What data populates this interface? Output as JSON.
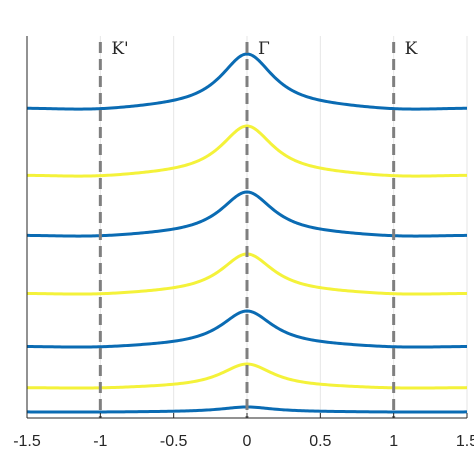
{
  "chart_data": {
    "type": "line",
    "xlim": [
      -1.5,
      1.5
    ],
    "x_ticks": [
      "-1.5",
      "-1",
      "-0.5",
      "0",
      "0.5",
      "1",
      "1.5"
    ],
    "x_tick_values": [
      -1.5,
      -1,
      -0.5,
      0,
      0.5,
      1,
      1.5
    ],
    "grid": true,
    "y_axis_labels": false,
    "colors": {
      "blue": "#0a6bb3",
      "yellow": "#f4f23a",
      "marker": "#7f7f7f",
      "axis": "#262626",
      "grid": "#e6e6e6"
    },
    "vertical_markers": [
      {
        "x": -1,
        "label": "K'"
      },
      {
        "x": 0,
        "label": "Γ"
      },
      {
        "x": 1,
        "label": "K"
      }
    ],
    "series": [
      {
        "color": "blue",
        "baseline": 109,
        "peak": 54
      },
      {
        "color": "yellow",
        "baseline": 176,
        "peak": 126
      },
      {
        "color": "blue",
        "baseline": 236,
        "peak": 192
      },
      {
        "color": "yellow",
        "baseline": 294,
        "peak": 254
      },
      {
        "color": "blue",
        "baseline": 347,
        "peak": 311
      },
      {
        "color": "yellow",
        "baseline": 388,
        "peak": 364
      },
      {
        "color": "blue",
        "baseline": 412,
        "peak": 407
      }
    ]
  }
}
